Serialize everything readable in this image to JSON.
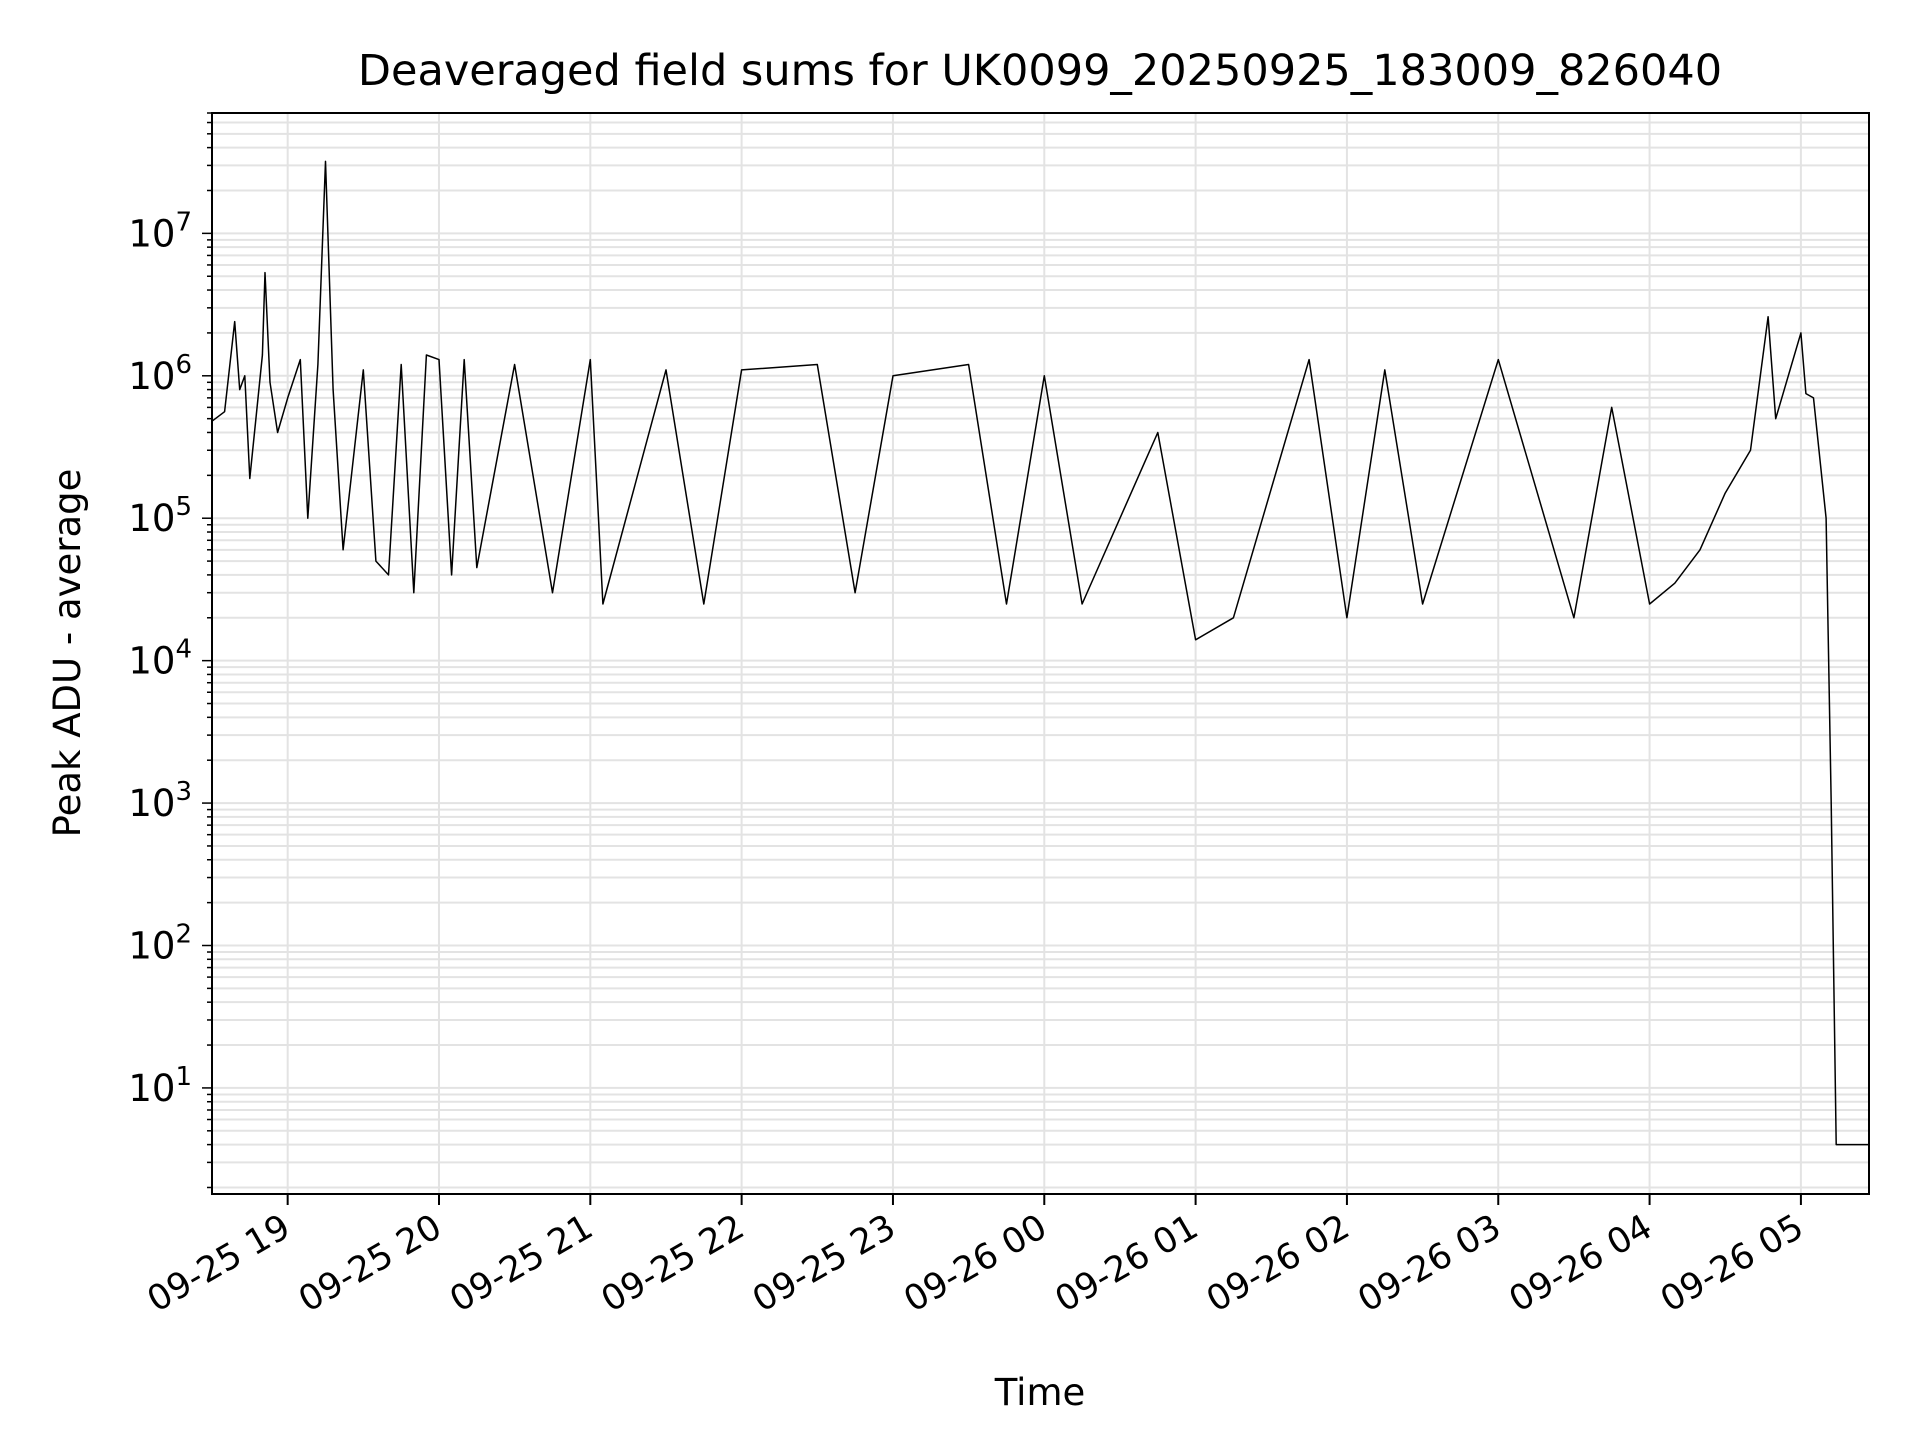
{
  "chart_data": {
    "type": "line",
    "title": "Deaveraged field sums for UK0099_20250925_183009_826040",
    "xlabel": "Time",
    "ylabel": "Peak ADU - average",
    "y_scale": "log",
    "ylim": [
      1.8,
      70000000
    ],
    "xlim": [
      "2025-09-25 18:30",
      "2025-09-26 05:27"
    ],
    "x_ticks": [
      {
        "label": "09-25 19",
        "time": "2025-09-25 19:00"
      },
      {
        "label": "09-25 20",
        "time": "2025-09-25 20:00"
      },
      {
        "label": "09-25 21",
        "time": "2025-09-25 21:00"
      },
      {
        "label": "09-25 22",
        "time": "2025-09-25 22:00"
      },
      {
        "label": "09-25 23",
        "time": "2025-09-25 23:00"
      },
      {
        "label": "09-26 00",
        "time": "2025-09-26 00:00"
      },
      {
        "label": "09-26 01",
        "time": "2025-09-26 01:00"
      },
      {
        "label": "09-26 02",
        "time": "2025-09-26 02:00"
      },
      {
        "label": "09-26 03",
        "time": "2025-09-26 03:00"
      },
      {
        "label": "09-26 04",
        "time": "2025-09-26 04:00"
      },
      {
        "label": "09-26 05",
        "time": "2025-09-26 05:00"
      }
    ],
    "y_ticks": [
      {
        "base": "10",
        "exp": "1",
        "value": 10
      },
      {
        "base": "10",
        "exp": "2",
        "value": 100
      },
      {
        "base": "10",
        "exp": "3",
        "value": 1000
      },
      {
        "base": "10",
        "exp": "4",
        "value": 10000
      },
      {
        "base": "10",
        "exp": "5",
        "value": 100000
      },
      {
        "base": "10",
        "exp": "6",
        "value": 1000000
      },
      {
        "base": "10",
        "exp": "7",
        "value": 10000000
      }
    ],
    "grid": true,
    "line_color": "#000000",
    "grid_color": "#e3e3e3",
    "series": [
      {
        "points": [
          [
            "2025-09-25 18:30",
            480000
          ],
          [
            "2025-09-25 18:35",
            560000
          ],
          [
            "2025-09-25 18:39",
            2400000
          ],
          [
            "2025-09-25 18:41",
            800000
          ],
          [
            "2025-09-25 18:43",
            1000000
          ],
          [
            "2025-09-25 18:45",
            190000
          ],
          [
            "2025-09-25 18:50",
            1400000
          ],
          [
            "2025-09-25 18:51",
            5300000
          ],
          [
            "2025-09-25 18:53",
            900000
          ],
          [
            "2025-09-25 18:56",
            400000
          ],
          [
            "2025-09-25 19:00",
            700000
          ],
          [
            "2025-09-25 19:05",
            1300000
          ],
          [
            "2025-09-25 19:08",
            100000
          ],
          [
            "2025-09-25 19:12",
            1200000
          ],
          [
            "2025-09-25 19:15",
            32000000
          ],
          [
            "2025-09-25 19:18",
            800000
          ],
          [
            "2025-09-25 19:22",
            60000
          ],
          [
            "2025-09-25 19:30",
            1100000
          ],
          [
            "2025-09-25 19:35",
            50000
          ],
          [
            "2025-09-25 19:40",
            40000
          ],
          [
            "2025-09-25 19:45",
            1200000
          ],
          [
            "2025-09-25 19:50",
            30000
          ],
          [
            "2025-09-25 19:55",
            1400000
          ],
          [
            "2025-09-25 20:00",
            1300000
          ],
          [
            "2025-09-25 20:05",
            40000
          ],
          [
            "2025-09-25 20:10",
            1300000
          ],
          [
            "2025-09-25 20:15",
            45000
          ],
          [
            "2025-09-25 20:30",
            1200000
          ],
          [
            "2025-09-25 20:45",
            30000
          ],
          [
            "2025-09-25 21:00",
            1300000
          ],
          [
            "2025-09-25 21:05",
            25000
          ],
          [
            "2025-09-25 21:30",
            1100000
          ],
          [
            "2025-09-25 21:45",
            25000
          ],
          [
            "2025-09-25 22:00",
            1100000
          ],
          [
            "2025-09-25 22:30",
            1200000
          ],
          [
            "2025-09-25 22:45",
            30000
          ],
          [
            "2025-09-25 23:00",
            1000000
          ],
          [
            "2025-09-25 23:30",
            1200000
          ],
          [
            "2025-09-25 23:45",
            25000
          ],
          [
            "2025-09-26 00:00",
            1000000
          ],
          [
            "2025-09-26 00:15",
            25000
          ],
          [
            "2025-09-26 00:45",
            400000
          ],
          [
            "2025-09-26 01:00",
            14000
          ],
          [
            "2025-09-26 01:15",
            20000
          ],
          [
            "2025-09-26 01:45",
            1300000
          ],
          [
            "2025-09-26 02:00",
            20000
          ],
          [
            "2025-09-26 02:15",
            1100000
          ],
          [
            "2025-09-26 02:30",
            25000
          ],
          [
            "2025-09-26 03:00",
            1300000
          ],
          [
            "2025-09-26 03:30",
            20000
          ],
          [
            "2025-09-26 03:45",
            600000
          ],
          [
            "2025-09-26 04:00",
            25000
          ],
          [
            "2025-09-26 04:10",
            35000
          ],
          [
            "2025-09-26 04:20",
            60000
          ],
          [
            "2025-09-26 04:30",
            150000
          ],
          [
            "2025-09-26 04:40",
            300000
          ],
          [
            "2025-09-26 04:47",
            2600000
          ],
          [
            "2025-09-26 04:50",
            500000
          ],
          [
            "2025-09-26 05:00",
            2000000
          ],
          [
            "2025-09-26 05:02",
            750000
          ],
          [
            "2025-09-26 05:05",
            700000
          ],
          [
            "2025-09-26 05:10",
            100000
          ],
          [
            "2025-09-26 05:12",
            1000
          ],
          [
            "2025-09-26 05:14",
            4
          ],
          [
            "2025-09-26 05:27",
            4
          ]
        ]
      }
    ]
  }
}
